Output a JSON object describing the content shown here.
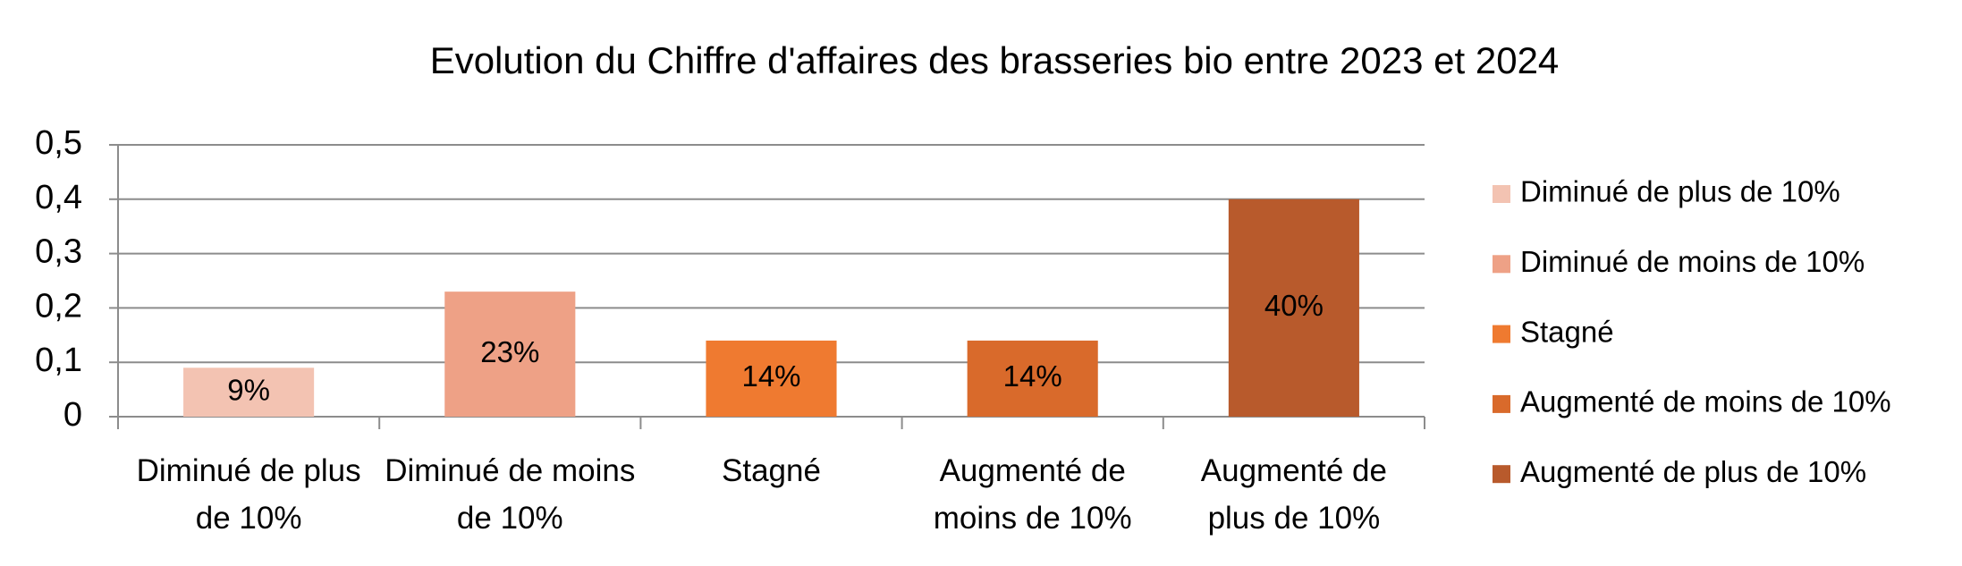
{
  "chart_data": {
    "type": "bar",
    "title": "Evolution du Chiffre d'affaires des brasseries bio entre 2023 et 2024",
    "categories": [
      "Diminué de plus de 10%",
      "Diminué de moins de 10%",
      "Stagné",
      "Augmenté de moins de 10%",
      "Augmenté de plus de 10%"
    ],
    "values": [
      0.09,
      0.23,
      0.14,
      0.14,
      0.4
    ],
    "value_labels": [
      "9%",
      "23%",
      "14%",
      "14%",
      "40%"
    ],
    "colors": [
      "#f3c3b2",
      "#eea186",
      "#ef7a30",
      "#d96a2b",
      "#b85a2c"
    ],
    "ylim": [
      0,
      0.5
    ],
    "yticks": [
      0,
      {
        "value": 0.1,
        "label": "0,1"
      },
      {
        "value": 0.2,
        "label": "0,2"
      },
      {
        "value": 0.3,
        "label": "0,3"
      },
      {
        "value": 0.4,
        "label": "0,4"
      },
      {
        "value": 0.5,
        "label": "0,5"
      }
    ],
    "grid": true,
    "legend": "right"
  }
}
